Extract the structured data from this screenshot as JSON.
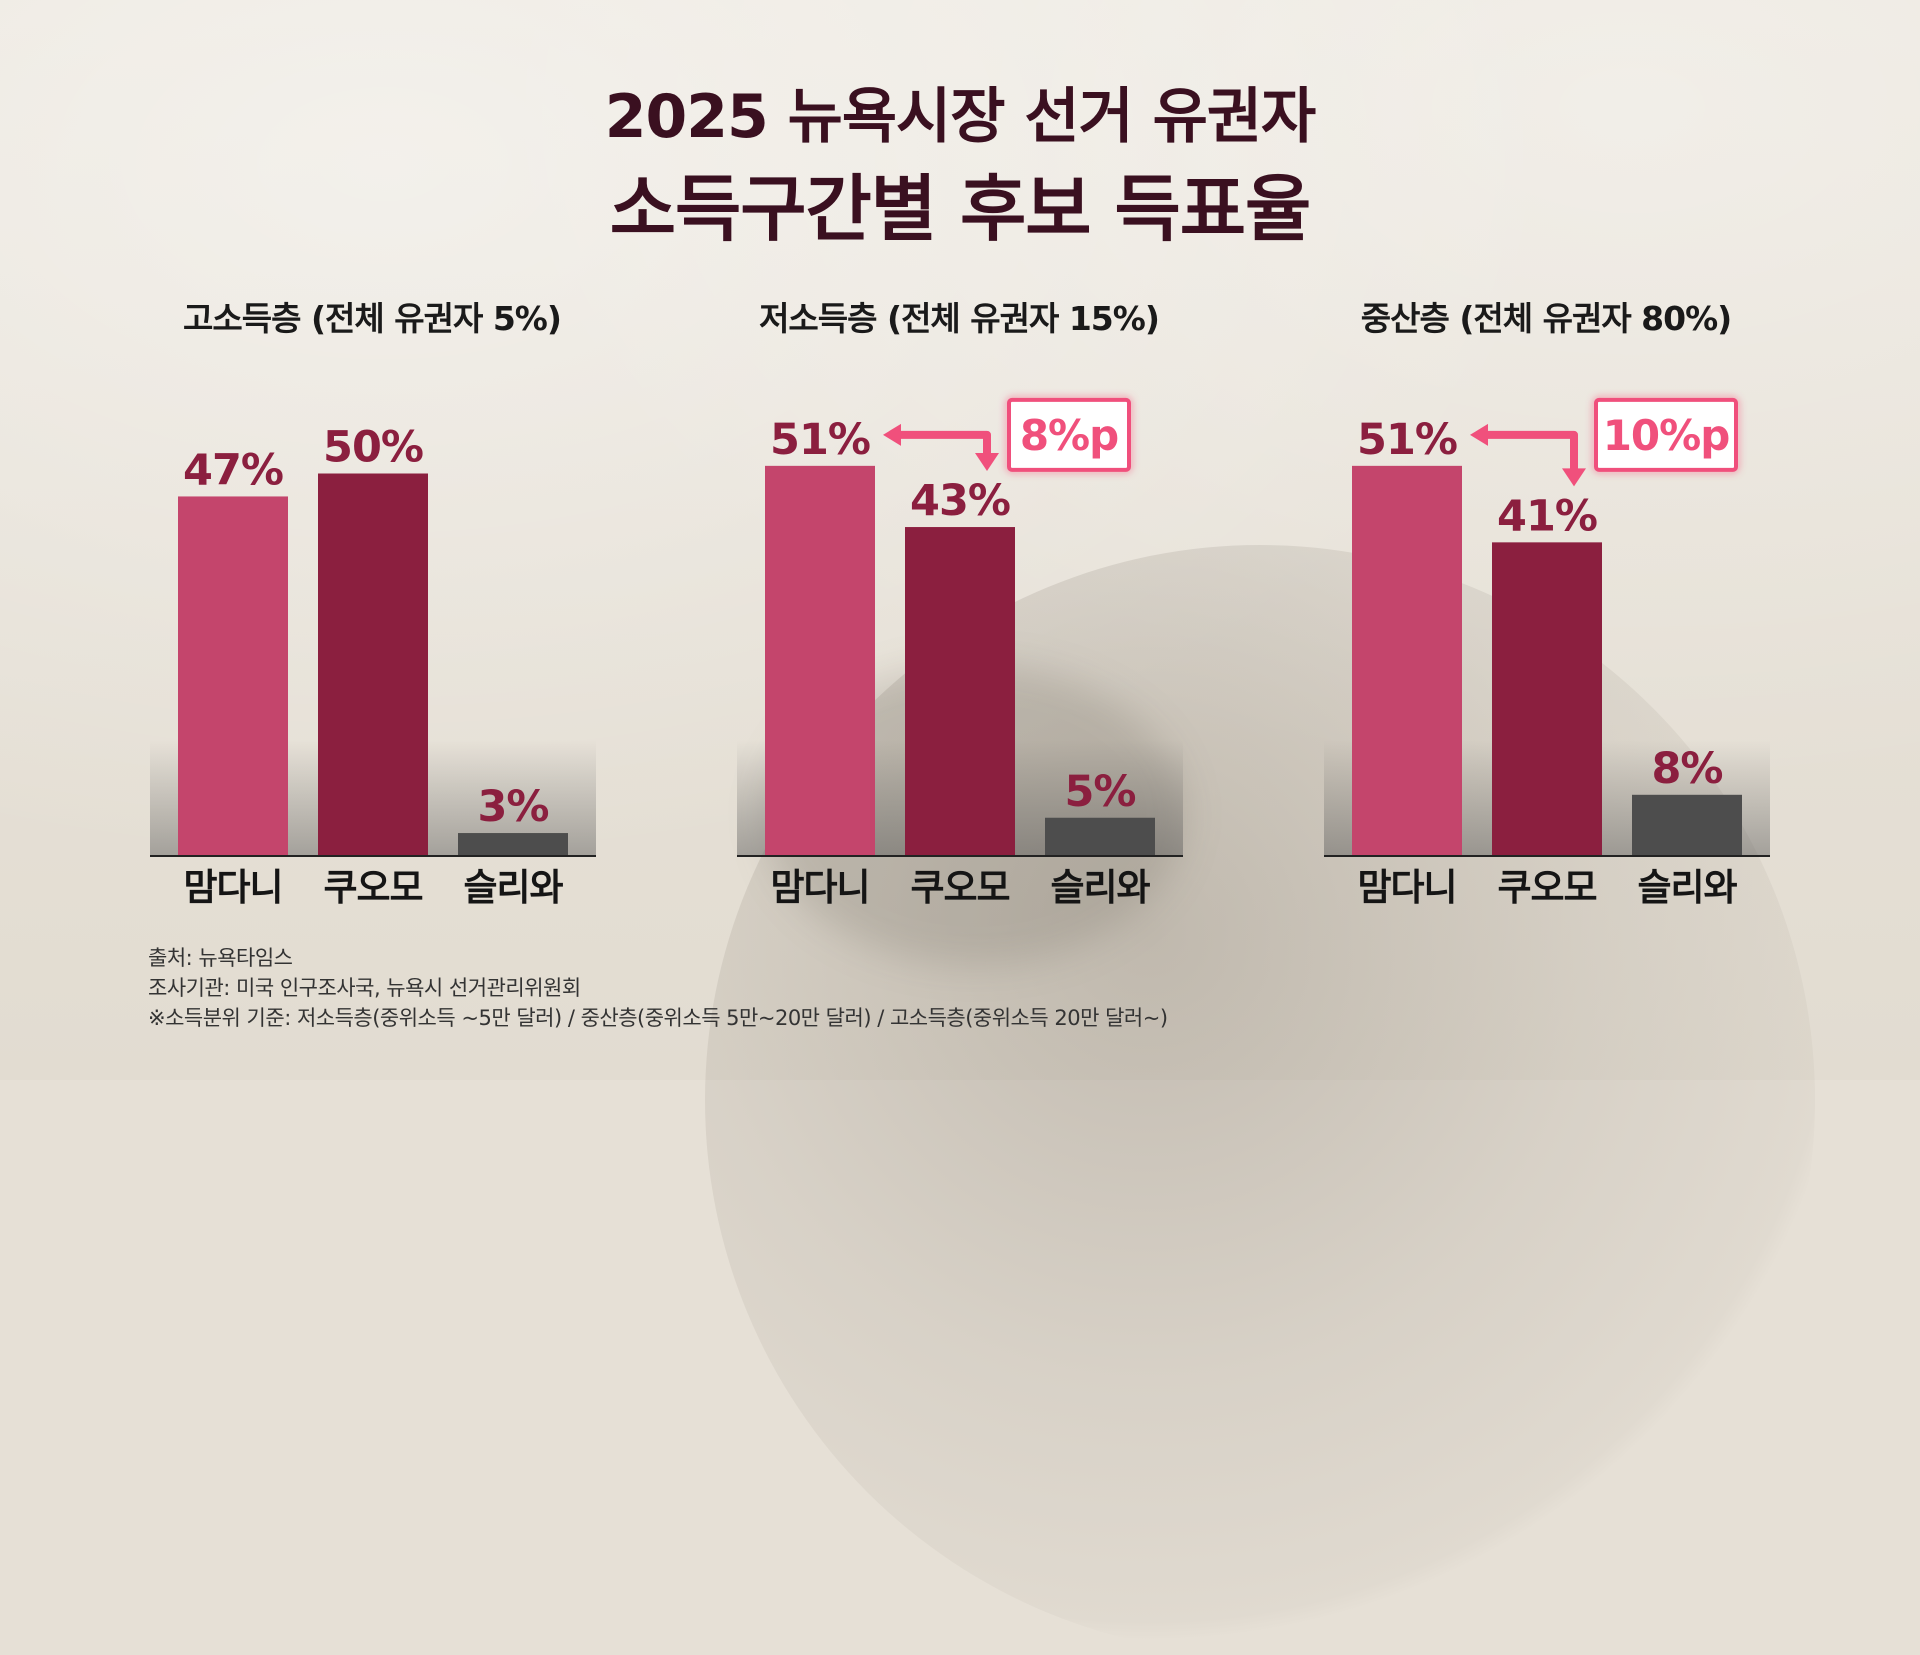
{
  "title": {
    "line1": "2025 뉴욕시장 선거 유권자",
    "line2": "소득구간별 후보 득표율"
  },
  "colors": {
    "mamdani": "#c4456c",
    "cuomo": "#8b1f3f",
    "sliwa": "#4d4d4d",
    "label": "#8b1f3f",
    "accent": "#f0507c",
    "title": "#3a1020"
  },
  "chart_data": [
    {
      "type": "bar",
      "title": "고소득층 (전체 유권자 5%)",
      "categories": [
        "맘다니",
        "쿠오모",
        "슬리와"
      ],
      "values": [
        47,
        50,
        3
      ],
      "value_labels": [
        "47%",
        "50%",
        "3%"
      ],
      "ylim": [
        0,
        60
      ],
      "grid": false,
      "gap_annotation": ""
    },
    {
      "type": "bar",
      "title": "저소득층 (전체 유권자 15%)",
      "categories": [
        "맘다니",
        "쿠오모",
        "슬리와"
      ],
      "values": [
        51,
        43,
        5
      ],
      "value_labels": [
        "51%",
        "43%",
        "5%"
      ],
      "ylim": [
        0,
        60
      ],
      "grid": false,
      "gap_annotation": "8%p"
    },
    {
      "type": "bar",
      "title": "중산층 (전체 유권자 80%)",
      "categories": [
        "맘다니",
        "쿠오모",
        "슬리와"
      ],
      "values": [
        51,
        41,
        8
      ],
      "value_labels": [
        "51%",
        "41%",
        "8%"
      ],
      "ylim": [
        0,
        60
      ],
      "grid": false,
      "gap_annotation": "10%p"
    }
  ],
  "footnotes": [
    "출처: 뉴욕타임스",
    "조사기관: 미국 인구조사국, 뉴욕시 선거관리위원회",
    "※소득분위 기준: 저소득층(중위소득 ~5만 달러) / 중산층(중위소득 5만~20만 달러) / 고소득층(중위소득 20만 달러~)"
  ]
}
